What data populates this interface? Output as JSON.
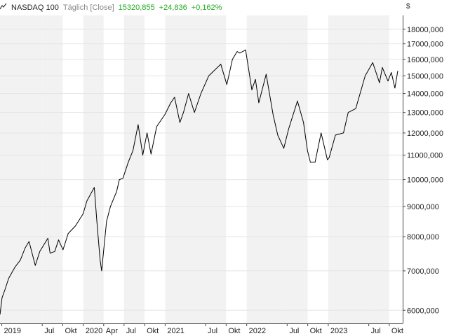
{
  "header": {
    "icon": "line-chart-icon",
    "instrument": "NASDAQ 100",
    "interval": "Täglich [Close]",
    "last": "15320,855",
    "change": "+24,836",
    "change_pct": "+0,162%",
    "currency": "$"
  },
  "colors": {
    "line": "#000000",
    "band_shade": "#f2f2f2",
    "band_light": "#ffffff",
    "positive": "#22aa22",
    "muted": "#888888",
    "axis": "#444444"
  },
  "chart_data": {
    "type": "line",
    "series": [
      {
        "name": "",
        "x": [
          "2018-12-24",
          "2019-01-02",
          "2019-01-15",
          "2019-02-01",
          "2019-03-01",
          "2019-03-25",
          "2019-04-15",
          "2019-05-03",
          "2019-05-31",
          "2019-06-20",
          "2019-07-26",
          "2019-08-05",
          "2019-08-26",
          "2019-09-12",
          "2019-10-02",
          "2019-10-25",
          "2019-11-27",
          "2019-12-31",
          "2020-01-17",
          "2020-02-19",
          "2020-03-02",
          "2020-03-16",
          "2020-03-23",
          "2020-04-14",
          "2020-05-01",
          "2020-05-29",
          "2020-06-10",
          "2020-06-26",
          "2020-07-20",
          "2020-08-10",
          "2020-09-02",
          "2020-09-23",
          "2020-10-12",
          "2020-10-30",
          "2020-11-24",
          "2020-12-31",
          "2021-01-26",
          "2021-02-12",
          "2021-03-08",
          "2021-03-24",
          "2021-04-16",
          "2021-05-12",
          "2021-06-10",
          "2021-07-15",
          "2021-08-30",
          "2021-09-07",
          "2021-10-04",
          "2021-10-29",
          "2021-11-19",
          "2021-12-01",
          "2021-12-27",
          "2022-01-24",
          "2022-02-09",
          "2022-02-24",
          "2022-03-29",
          "2022-04-29",
          "2022-05-20",
          "2022-06-16",
          "2022-07-08",
          "2022-08-16",
          "2022-09-12",
          "2022-09-30",
          "2022-10-13",
          "2022-11-03",
          "2022-11-30",
          "2022-12-28",
          "2023-01-05",
          "2023-02-02",
          "2023-03-10",
          "2023-03-31",
          "2023-05-04",
          "2023-06-15",
          "2023-07-19",
          "2023-08-18",
          "2023-08-31",
          "2023-09-25",
          "2023-10-10",
          "2023-10-26",
          "2023-11-08"
        ],
        "values": [
          5900,
          6300,
          6500,
          6800,
          7100,
          7300,
          7650,
          7850,
          7150,
          7550,
          7950,
          7500,
          7550,
          7900,
          7600,
          8100,
          8350,
          8750,
          9200,
          9700,
          8450,
          7300,
          7000,
          8500,
          9000,
          9550,
          10000,
          10050,
          10700,
          11200,
          12400,
          11000,
          12000,
          11050,
          12300,
          12900,
          13500,
          13800,
          12500,
          13000,
          14000,
          13000,
          14000,
          15000,
          15600,
          15700,
          14500,
          16000,
          16500,
          16400,
          16600,
          14200,
          14800,
          13500,
          15100,
          12900,
          11900,
          11300,
          12200,
          13600,
          12500,
          11200,
          10700,
          10700,
          12000,
          10800,
          10900,
          11900,
          12000,
          13000,
          13200,
          15000,
          15800,
          14600,
          15500,
          14700,
          15200,
          14300,
          15300
        ]
      }
    ],
    "xlabel": "",
    "ylabel": "",
    "log_scale": true,
    "xlim": [
      "2018-12-24",
      "2023-11-30"
    ],
    "ylim": [
      5700,
      19000
    ],
    "y_ticks": [
      6000,
      7000,
      8000,
      9000,
      10000,
      11000,
      12000,
      13000,
      14000,
      15000,
      16000,
      17000,
      18000
    ],
    "y_tick_labels": [
      "6000,000",
      "7000,000",
      "8000,000",
      "9000,000",
      "10000,000",
      "11000,000",
      "12000,000",
      "13000,000",
      "14000,000",
      "15000,000",
      "16000,000",
      "17000,000",
      "18000,000"
    ],
    "x_ticks": [
      "2019-01-01",
      "2019-07-01",
      "2019-10-01",
      "2020-01-01",
      "2020-04-01",
      "2020-07-01",
      "2020-10-01",
      "2021-01-01",
      "2021-07-01",
      "2021-10-01",
      "2022-01-01",
      "2022-07-01",
      "2022-10-01",
      "2023-01-01",
      "2023-07-01",
      "2023-10-01"
    ],
    "x_tick_labels": [
      "2019",
      "Jul",
      "Okt",
      "2020",
      "Apr",
      "Jul",
      "Okt",
      "2021",
      "Jul",
      "Okt",
      "2022",
      "Jul",
      "Okt",
      "2023",
      "Jul",
      "Okt"
    ],
    "grid": true,
    "legend": "none"
  }
}
